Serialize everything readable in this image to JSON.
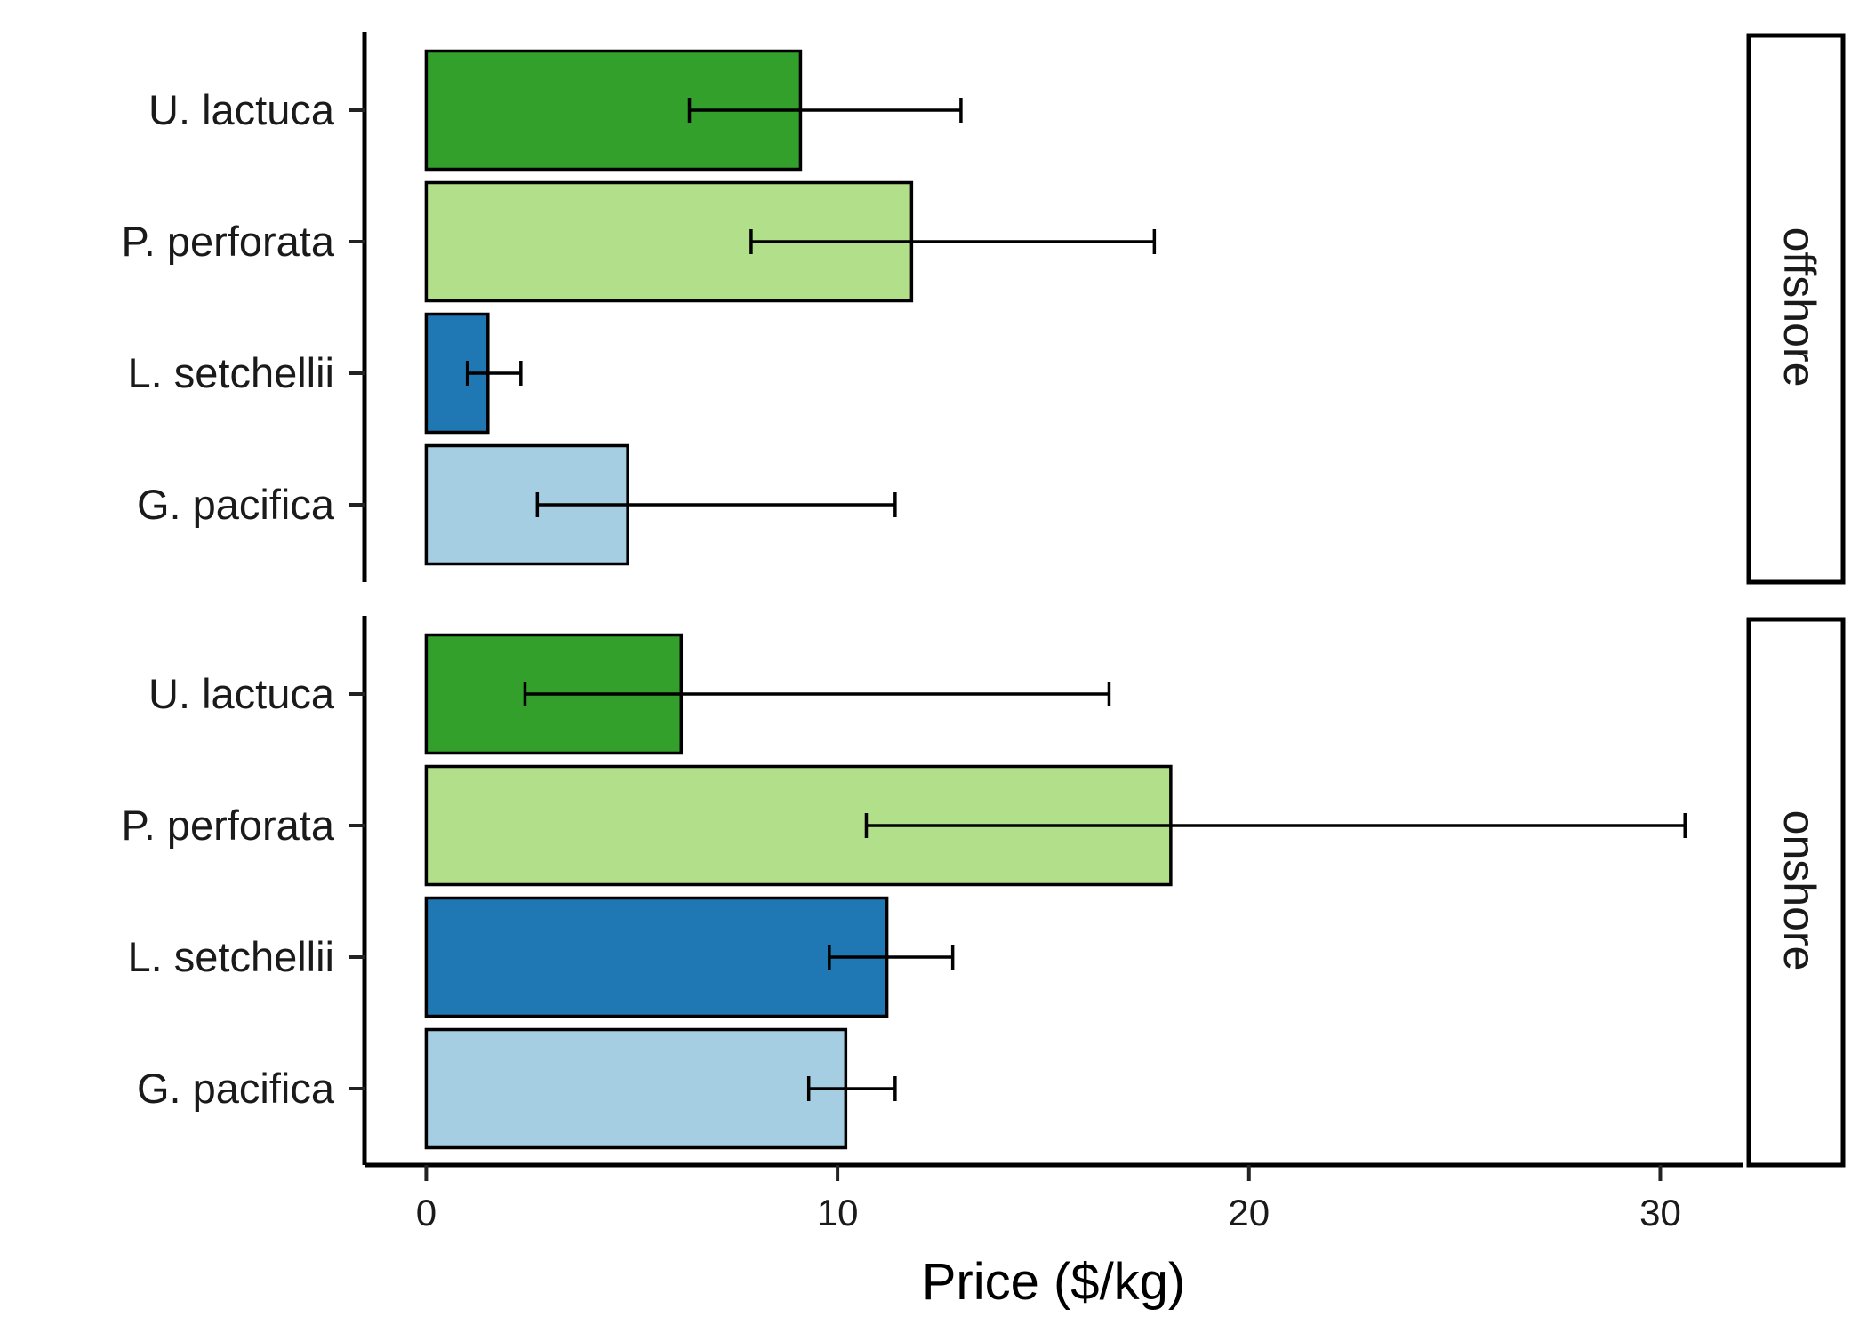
{
  "chart_data": {
    "type": "bar",
    "orientation": "horizontal",
    "xlabel": "Price ($/kg)",
    "ylabel": "",
    "xlim": [
      -1.5,
      32
    ],
    "xticks": [
      0,
      10,
      20,
      30
    ],
    "categories": [
      "U. lactuca",
      "P. perforata",
      "L. setchellii",
      "G. pacifica"
    ],
    "colors": {
      "U. lactuca": "#33a02c",
      "P. perforata": "#b2df8a",
      "L. setchellii": "#1f78b4",
      "G. pacifica": "#a6cee3"
    },
    "facets": [
      {
        "label": "offshore",
        "values": [
          9.1,
          11.8,
          1.5,
          4.9
        ],
        "error_low": [
          6.4,
          7.9,
          1.0,
          2.7
        ],
        "error_high": [
          13.0,
          17.7,
          2.3,
          11.4
        ]
      },
      {
        "label": "onshore",
        "values": [
          6.2,
          18.1,
          11.2,
          10.2
        ],
        "error_low": [
          2.4,
          10.7,
          9.8,
          9.3
        ],
        "error_high": [
          16.6,
          30.6,
          12.8,
          11.4
        ]
      }
    ]
  }
}
